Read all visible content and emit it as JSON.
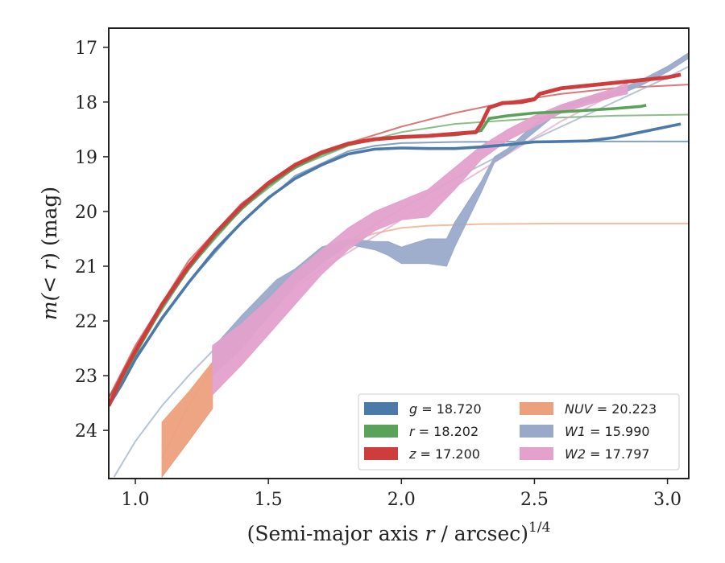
{
  "chart_data": {
    "type": "line",
    "xlabel_text": "(Semi-major axis ",
    "xlabel_var": "r",
    "xlabel_unit": " / arcsec)",
    "xlabel_exp": "1/4",
    "ylabel_prefix": "m(",
    "ylabel_var": "< r",
    "ylabel_suffix": ") (mag)",
    "xlim": [
      0.9,
      3.08
    ],
    "ylim": [
      24.88,
      16.65
    ],
    "y_inverted": true,
    "grid": false,
    "legend_position": "bottom-right",
    "x_ticks": [
      1.0,
      1.5,
      2.0,
      2.5,
      3.0
    ],
    "x_tick_labels": [
      "1.0",
      "1.5",
      "2.0",
      "2.5",
      "3.0"
    ],
    "y_ticks": [
      17,
      18,
      19,
      20,
      21,
      22,
      23,
      24
    ],
    "y_tick_labels": [
      "17",
      "18",
      "19",
      "20",
      "21",
      "22",
      "23",
      "24"
    ],
    "legend": [
      {
        "band": "g",
        "value": "18.720"
      },
      {
        "band": "r",
        "value": "18.202"
      },
      {
        "band": "z",
        "value": "17.200"
      },
      {
        "band": "NUV",
        "value": "20.223"
      },
      {
        "band": "W1",
        "value": "15.990"
      },
      {
        "band": "W2",
        "value": "17.797"
      }
    ],
    "series": [
      {
        "name": "g = 18.720",
        "color": "#4c7aa8",
        "x": [
          0.9,
          0.95,
          1.0,
          1.1,
          1.2,
          1.3,
          1.4,
          1.5,
          1.6,
          1.7,
          1.8,
          1.9,
          2.0,
          2.1,
          2.2,
          2.3,
          2.4,
          2.5,
          2.6,
          2.7,
          2.8,
          2.9,
          3.0,
          3.05
        ],
        "y": [
          23.55,
          23.15,
          22.7,
          21.95,
          21.3,
          20.7,
          20.2,
          19.75,
          19.4,
          19.15,
          18.95,
          18.86,
          18.84,
          18.85,
          18.85,
          18.82,
          18.78,
          18.73,
          18.72,
          18.71,
          18.65,
          18.55,
          18.45,
          18.4
        ],
        "width": 0.06
      },
      {
        "name": "r = 18.202",
        "color": "#5aa25a",
        "x": [
          0.9,
          0.95,
          1.0,
          1.1,
          1.2,
          1.3,
          1.4,
          1.5,
          1.6,
          1.7,
          1.8,
          1.9,
          2.0,
          2.1,
          2.2,
          2.25,
          2.3,
          2.33,
          2.4,
          2.5,
          2.6,
          2.7,
          2.8,
          2.9,
          2.92
        ],
        "y": [
          23.55,
          23.05,
          22.6,
          21.75,
          21.05,
          20.45,
          19.95,
          19.52,
          19.2,
          18.95,
          18.78,
          18.68,
          18.65,
          18.62,
          18.6,
          18.57,
          18.52,
          18.3,
          18.25,
          18.2,
          18.18,
          18.15,
          18.12,
          18.08,
          18.06
        ],
        "width": 0.06
      },
      {
        "name": "z = 17.200",
        "color": "#cf3c3c",
        "x": [
          0.9,
          0.95,
          1.0,
          1.1,
          1.2,
          1.3,
          1.4,
          1.5,
          1.6,
          1.7,
          1.8,
          1.9,
          2.0,
          2.1,
          2.2,
          2.28,
          2.3,
          2.33,
          2.38,
          2.45,
          2.5,
          2.52,
          2.6,
          2.7,
          2.8,
          2.9,
          3.0,
          3.05
        ],
        "y": [
          23.55,
          23.0,
          22.55,
          21.7,
          21.0,
          20.4,
          19.9,
          19.48,
          19.15,
          18.92,
          18.76,
          18.68,
          18.64,
          18.62,
          18.58,
          18.55,
          18.4,
          18.1,
          18.02,
          18.0,
          17.95,
          17.85,
          17.75,
          17.7,
          17.65,
          17.6,
          17.55,
          17.5
        ],
        "width": 0.08
      },
      {
        "name": "NUV = 20.223",
        "color": "#eda07c",
        "x": [
          1.1,
          1.2,
          1.29
        ],
        "y_upper": [
          23.85,
          23.3,
          22.75
        ],
        "y_lower": [
          24.85,
          24.2,
          23.6
        ]
      },
      {
        "name": "W1 = 15.990",
        "color": "#99aac9",
        "x": [
          1.29,
          1.4,
          1.53,
          1.6,
          1.7,
          1.8,
          1.9,
          1.95,
          2.0,
          2.1,
          2.17,
          2.2,
          2.3,
          2.35,
          2.4,
          2.5,
          2.6,
          2.7,
          2.8,
          2.9,
          3.0,
          3.08
        ],
        "y_upper": [
          22.5,
          21.9,
          21.25,
          21.05,
          20.65,
          20.5,
          20.55,
          20.55,
          20.65,
          20.5,
          20.5,
          20.2,
          19.45,
          19.0,
          18.85,
          18.4,
          18.05,
          17.9,
          17.8,
          17.6,
          17.35,
          17.1
        ],
        "y_lower": [
          23.0,
          22.5,
          21.75,
          21.35,
          20.95,
          20.6,
          20.7,
          20.8,
          20.95,
          20.95,
          21.0,
          20.65,
          19.65,
          19.1,
          18.95,
          18.55,
          18.15,
          18.0,
          17.9,
          17.7,
          17.45,
          17.2
        ]
      },
      {
        "name": "W2 = 17.797",
        "color": "#e3a1cb",
        "x": [
          1.29,
          1.4,
          1.5,
          1.6,
          1.7,
          1.8,
          1.9,
          2.0,
          2.1,
          2.2,
          2.3,
          2.4,
          2.5,
          2.6,
          2.7,
          2.8,
          2.85
        ],
        "y_upper": [
          22.45,
          22.05,
          21.6,
          21.1,
          20.7,
          20.3,
          20.0,
          19.8,
          19.6,
          19.2,
          18.8,
          18.5,
          18.25,
          18.05,
          17.9,
          17.75,
          17.65
        ],
        "y_lower": [
          23.35,
          22.8,
          22.25,
          21.7,
          21.15,
          20.7,
          20.35,
          20.15,
          20.1,
          19.6,
          19.05,
          18.7,
          18.45,
          18.2,
          18.05,
          17.9,
          17.85
        ]
      }
    ],
    "fits": [
      {
        "name": "g fit",
        "color": "#4c7aa8",
        "asymptote": 18.72,
        "x": [
          0.9,
          1.0,
          1.2,
          1.4,
          1.6,
          1.8,
          1.9,
          2.0,
          2.2,
          2.5,
          3.08
        ],
        "y": [
          23.4,
          22.65,
          21.3,
          20.2,
          19.35,
          18.9,
          18.8,
          18.75,
          18.73,
          18.72,
          18.72
        ]
      },
      {
        "name": "r fit",
        "color": "#5aa25a",
        "asymptote": 18.202,
        "x": [
          0.9,
          1.0,
          1.2,
          1.4,
          1.6,
          1.8,
          2.0,
          2.2,
          2.5,
          2.8,
          3.08
        ],
        "y": [
          23.4,
          22.55,
          21.05,
          19.95,
          19.2,
          18.8,
          18.55,
          18.4,
          18.3,
          18.25,
          18.23
        ]
      },
      {
        "name": "z fit",
        "color": "#cf3c3c",
        "asymptote": 17.2,
        "x": [
          0.9,
          1.0,
          1.2,
          1.4,
          1.6,
          1.8,
          2.0,
          2.2,
          2.4,
          2.6,
          2.8,
          3.08
        ],
        "y": [
          23.4,
          22.45,
          20.9,
          19.85,
          19.15,
          18.75,
          18.45,
          18.2,
          18.0,
          17.85,
          17.75,
          17.68
        ]
      },
      {
        "name": "NUV fit",
        "color": "#eda07c",
        "asymptote": 20.223,
        "x": [
          1.1,
          1.2,
          1.3,
          1.4,
          1.5,
          1.6,
          1.7,
          1.8,
          1.9,
          2.0,
          2.1,
          2.3,
          2.6,
          3.08
        ],
        "y": [
          24.5,
          23.55,
          22.75,
          22.1,
          21.55,
          21.1,
          20.78,
          20.55,
          20.4,
          20.3,
          20.26,
          20.23,
          20.22,
          20.22
        ]
      },
      {
        "name": "W1 fit",
        "color": "#99aac9",
        "asymptote": 15.99,
        "x": [
          0.92,
          1.0,
          1.1,
          1.2,
          1.3,
          1.4,
          1.6,
          1.8,
          2.0,
          2.2,
          2.4,
          2.6,
          2.8,
          3.0,
          3.08
        ],
        "y": [
          24.85,
          24.2,
          23.55,
          23.0,
          22.5,
          22.05,
          21.2,
          20.55,
          19.95,
          19.4,
          18.9,
          18.45,
          18.0,
          17.55,
          17.35
        ]
      },
      {
        "name": "W2 fit",
        "color": "#e3a1cb",
        "asymptote": 17.797,
        "x": [
          1.29,
          1.4,
          1.5,
          1.6,
          1.7,
          1.8,
          1.9,
          2.0,
          2.2,
          2.4,
          2.6,
          2.8,
          2.85
        ],
        "y": [
          22.8,
          22.25,
          21.8,
          21.4,
          21.05,
          20.75,
          20.45,
          20.15,
          19.55,
          18.95,
          18.35,
          17.85,
          17.75
        ]
      }
    ]
  }
}
